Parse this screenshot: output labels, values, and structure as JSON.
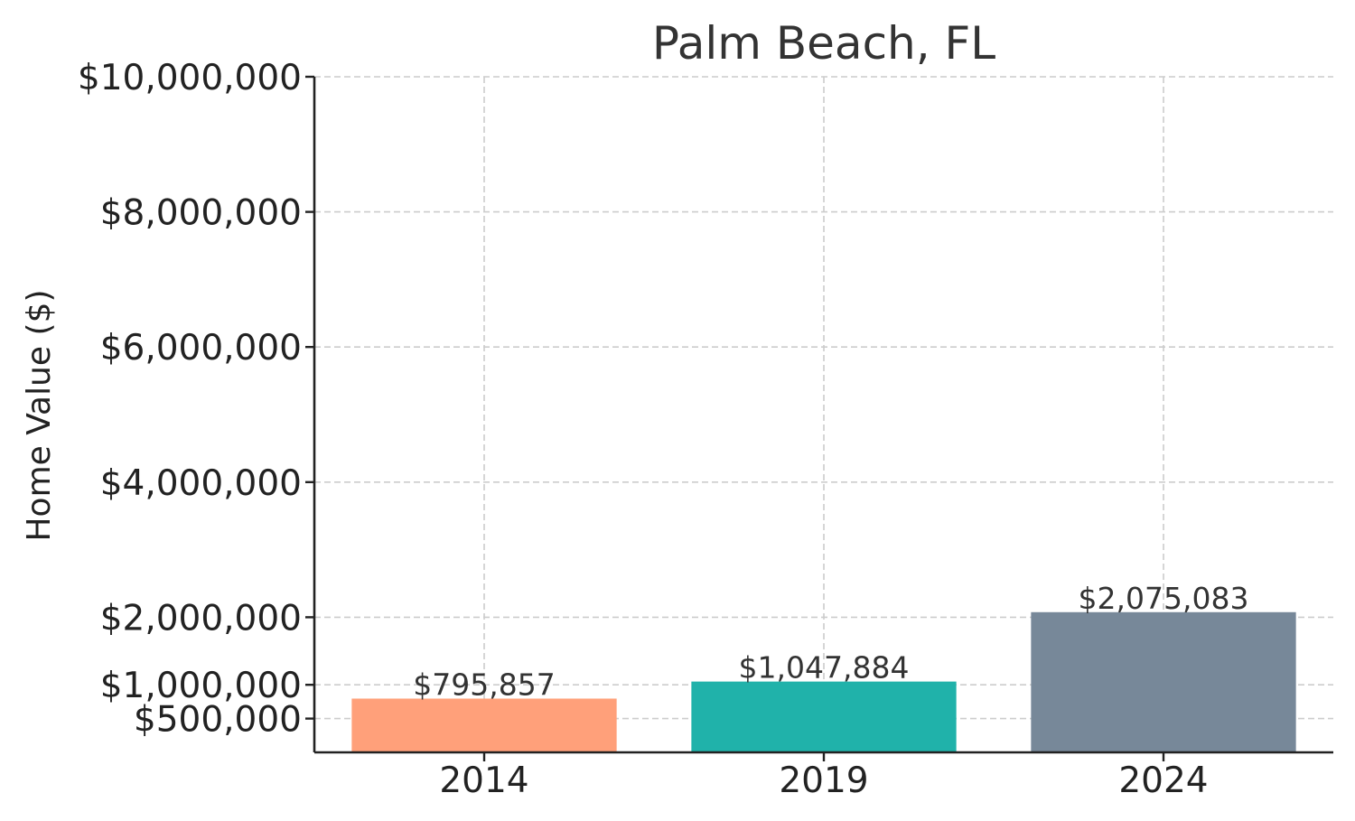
{
  "chart_data": {
    "type": "bar",
    "title": "Palm Beach, FL",
    "xlabel": "",
    "ylabel": "Home Value ($)",
    "categories": [
      "2014",
      "2019",
      "2024"
    ],
    "values": [
      795857,
      1047884,
      2075083
    ],
    "value_labels": [
      "$795,857",
      "$1,047,884",
      "$2,075,083"
    ],
    "colors": [
      "#FFA07A",
      "#20B2AA",
      "#778899"
    ],
    "ylim": [
      0,
      10000000
    ],
    "yticks": [
      500000,
      1000000,
      2000000,
      4000000,
      6000000,
      8000000,
      10000000
    ],
    "ytick_labels": [
      "$500,000",
      "$1,000,000",
      "$2,000,000",
      "$4,000,000",
      "$6,000,000",
      "$8,000,000",
      "$10,000,000"
    ],
    "grid": true,
    "legend": "none"
  }
}
